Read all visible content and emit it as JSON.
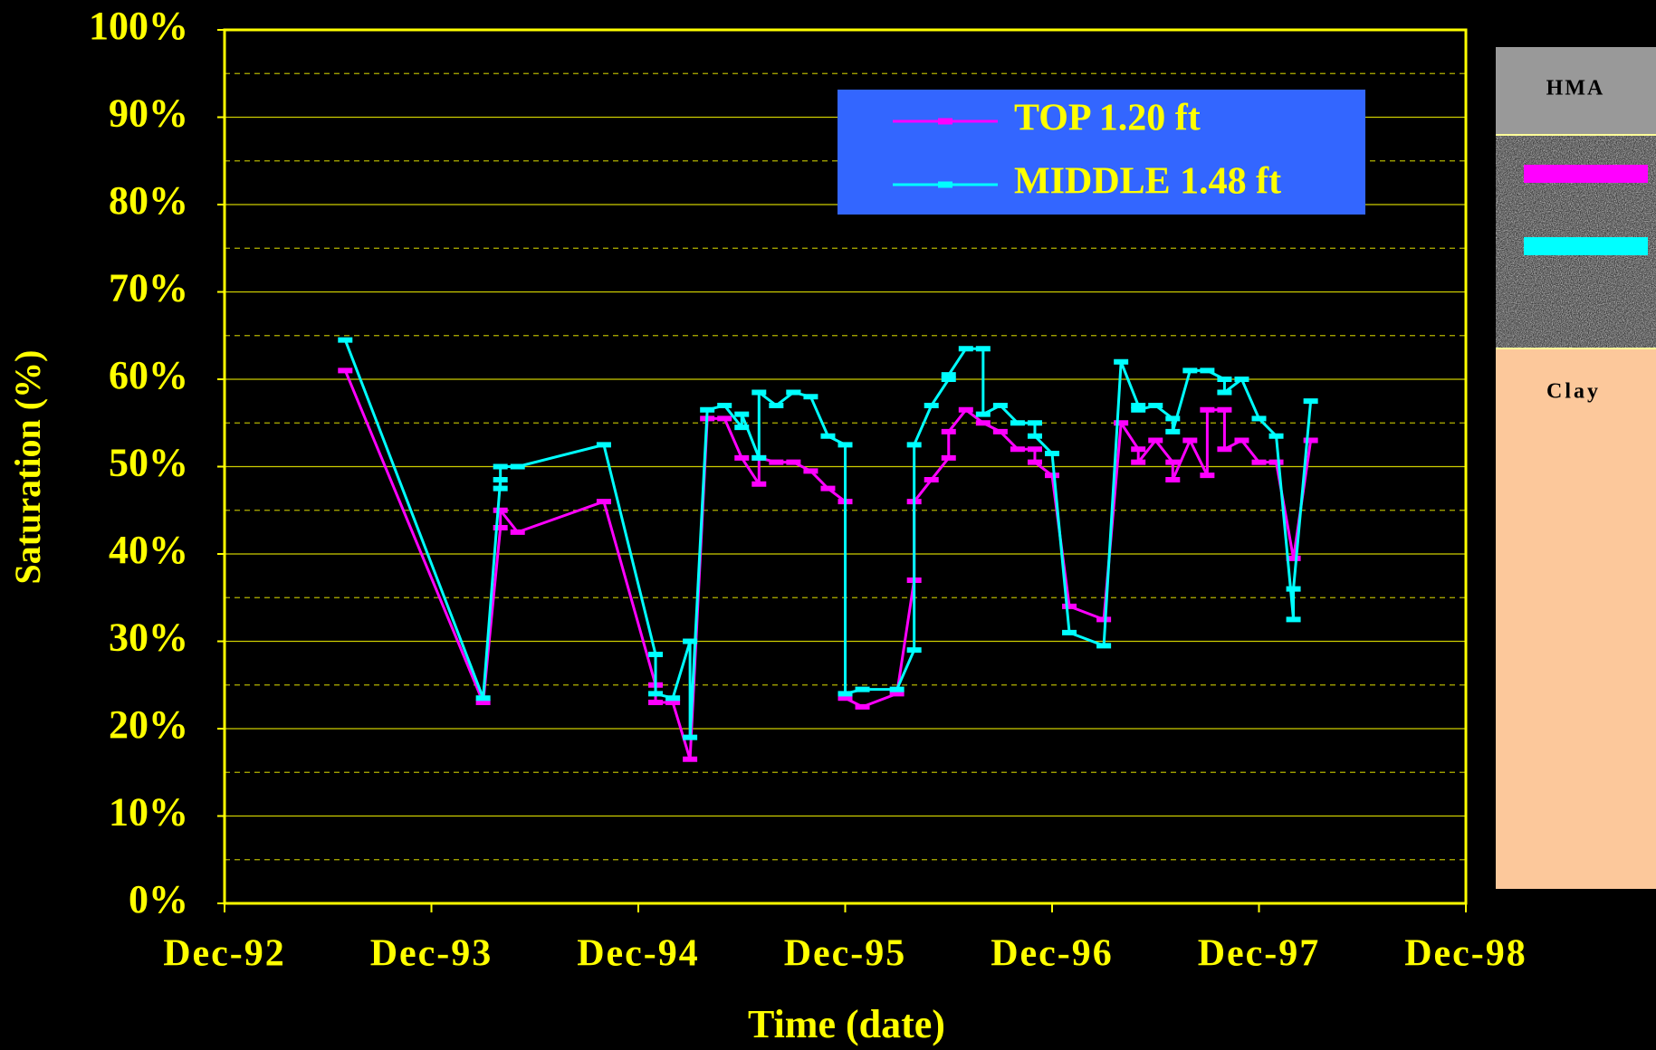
{
  "chart_data": {
    "type": "line",
    "y_label": "Saturation (%)",
    "x_label": "Time (date)",
    "xlim": [
      "1992-12",
      "1998-12"
    ],
    "xticks": [
      {
        "value": "1992-12",
        "label": "Dec-92"
      },
      {
        "value": "1993-12",
        "label": "Dec-93"
      },
      {
        "value": "1994-12",
        "label": "Dec-94"
      },
      {
        "value": "1995-12",
        "label": "Dec-95"
      },
      {
        "value": "1996-12",
        "label": "Dec-96"
      },
      {
        "value": "1997-12",
        "label": "Dec-97"
      },
      {
        "value": "1998-12",
        "label": "Dec-98"
      }
    ],
    "ylim": [
      0,
      100
    ],
    "yticks": [
      {
        "value": 0,
        "label": "0%"
      },
      {
        "value": 10,
        "label": "10%"
      },
      {
        "value": 20,
        "label": "20%"
      },
      {
        "value": 30,
        "label": "30%"
      },
      {
        "value": 40,
        "label": "40%"
      },
      {
        "value": 50,
        "label": "50%"
      },
      {
        "value": 60,
        "label": "60%"
      },
      {
        "value": 70,
        "label": "70%"
      },
      {
        "value": 80,
        "label": "80%"
      },
      {
        "value": 90,
        "label": "90%"
      },
      {
        "value": 100,
        "label": "100%"
      }
    ],
    "minor_yticks": [
      5,
      15,
      25,
      35,
      45,
      55,
      65,
      75,
      85,
      95
    ],
    "grid": true,
    "series": [
      {
        "name": "TOP 1.20 ft",
        "color": "#ff00ff",
        "x": [
          "1993-07",
          "1994-03",
          "1994-04",
          "1994-04",
          "1994-05",
          "1994-10",
          "1995-01",
          "1995-01",
          "1995-02",
          "1995-03",
          "1995-04",
          "1995-05",
          "1995-06",
          "1995-07",
          "1995-07",
          "1995-08",
          "1995-09",
          "1995-10",
          "1995-11",
          "1995-12",
          "1995-12",
          "1996-01",
          "1996-03",
          "1996-04",
          "1996-04",
          "1996-05",
          "1996-06",
          "1996-06",
          "1996-07",
          "1996-08",
          "1996-09",
          "1996-10",
          "1996-11",
          "1996-11",
          "1996-12",
          "1997-01",
          "1997-03",
          "1997-04",
          "1997-05",
          "1997-05",
          "1997-06",
          "1997-07",
          "1997-07",
          "1997-08",
          "1997-09",
          "1997-09",
          "1997-10",
          "1997-10",
          "1997-11",
          "1997-12",
          "1998-01",
          "1998-02",
          "1998-03"
        ],
        "values": [
          61,
          23,
          43,
          45,
          42.5,
          46,
          25,
          23,
          23,
          16.5,
          55.5,
          55.5,
          51,
          48,
          51,
          50.5,
          50.5,
          49.5,
          47.5,
          46,
          23.5,
          22.5,
          24,
          37,
          46,
          48.5,
          51,
          54,
          56.5,
          55,
          54,
          52,
          52,
          50.5,
          49,
          34,
          32.5,
          55,
          52,
          50.5,
          53,
          50.5,
          48.5,
          53,
          49,
          56.5,
          56.5,
          52,
          53,
          50.5,
          50.5,
          39.5,
          53
        ]
      },
      {
        "name": "MIDDLE 1.48 ft",
        "color": "#00ffff",
        "x": [
          "1993-07",
          "1994-03",
          "1994-04",
          "1994-04",
          "1994-04",
          "1994-05",
          "1994-10",
          "1995-01",
          "1995-01",
          "1995-02",
          "1995-03",
          "1995-03",
          "1995-04",
          "1995-05",
          "1995-06",
          "1995-06",
          "1995-07",
          "1995-07",
          "1995-08",
          "1995-09",
          "1995-09",
          "1995-10",
          "1995-11",
          "1995-12",
          "1995-12",
          "1996-01",
          "1996-03",
          "1996-04",
          "1996-04",
          "1996-05",
          "1996-06",
          "1996-06",
          "1996-07",
          "1996-08",
          "1996-08",
          "1996-09",
          "1996-10",
          "1996-11",
          "1996-11",
          "1996-12",
          "1997-01",
          "1997-03",
          "1997-04",
          "1997-05",
          "1997-05",
          "1997-06",
          "1997-07",
          "1997-07",
          "1997-08",
          "1997-09",
          "1997-10",
          "1997-10",
          "1997-11",
          "1997-12",
          "1998-01",
          "1998-02",
          "1998-02",
          "1998-03"
        ],
        "values": [
          64.5,
          23.5,
          48.5,
          47.5,
          50,
          50,
          52.5,
          28.5,
          24,
          23.5,
          30,
          19,
          56.5,
          57,
          54.5,
          56,
          51,
          58.5,
          57,
          58.5,
          58.5,
          58,
          53.5,
          52.5,
          24,
          24.5,
          24.5,
          29,
          52.5,
          57,
          60,
          60.5,
          63.5,
          63.5,
          56,
          57,
          55,
          55,
          53.5,
          51.5,
          31,
          29.5,
          62,
          57,
          56.5,
          57,
          55.5,
          54,
          61,
          61,
          60,
          58.5,
          60,
          55.5,
          53.5,
          32.5,
          36,
          57.5
        ]
      }
    ],
    "diagram_labels": [
      "HMA",
      "Clay"
    ]
  }
}
